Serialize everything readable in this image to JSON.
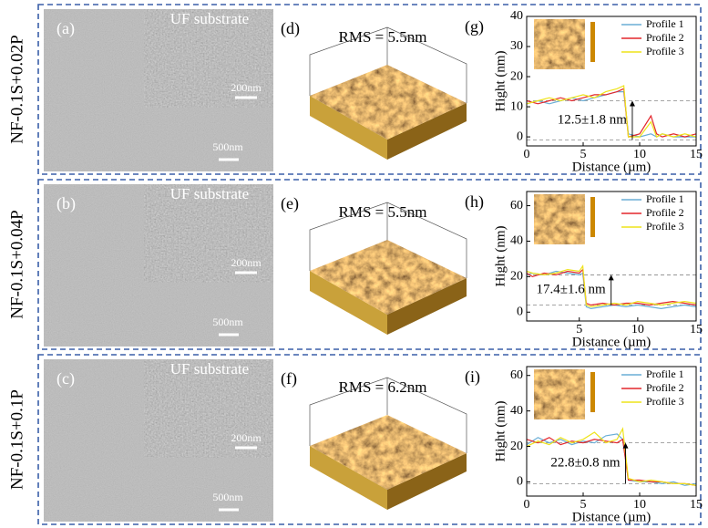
{
  "rows": [
    {
      "label": "NF-0.1S+0.02P",
      "sem": {
        "panel": "(a)",
        "inset_label": "UF substrate",
        "inset_scale": "200nm",
        "scale": "500nm"
      },
      "afm": {
        "panel": "(d)",
        "rms": "RMS = 5.5nm"
      }
    },
    {
      "label": "NF-0.1S+0.04P",
      "sem": {
        "panel": "(b)",
        "inset_label": "UF substrate",
        "inset_scale": "200nm",
        "scale": "500nm"
      },
      "afm": {
        "panel": "(e)",
        "rms": "RMS = 5.5nm"
      }
    },
    {
      "label": "NF-0.1S+0.1P",
      "sem": {
        "panel": "(c)",
        "inset_label": "UF substrate",
        "inset_scale": "200nm",
        "scale": "500nm"
      },
      "afm": {
        "panel": "(f)",
        "rms": "RMS = 6.2nm"
      }
    }
  ],
  "chart_data": [
    {
      "type": "line",
      "panel": "(g)",
      "xlabel": "Distance (µm)",
      "ylabel": "Hight (nm)",
      "annotation": "12.5±1.8 nm",
      "legend": "upper right",
      "x": [
        0,
        1,
        2,
        3,
        4,
        5,
        6,
        7,
        8,
        8.6,
        9,
        10,
        11,
        11.5,
        12,
        13,
        14,
        15
      ],
      "xlim": [
        0,
        15
      ],
      "xticks": [
        0,
        5,
        10,
        15
      ],
      "ylim": [
        -3,
        40
      ],
      "yticks": [
        0,
        10,
        20,
        30,
        40
      ],
      "reference_lines": [
        12,
        -1
      ],
      "series": [
        {
          "name": "Profile 1",
          "color": "#6aaed6",
          "values": [
            11,
            12,
            11,
            12,
            13,
            12,
            13,
            14,
            15,
            15,
            1,
            0,
            1,
            0,
            1,
            0,
            0,
            0
          ]
        },
        {
          "name": "Profile 2",
          "color": "#e3262c",
          "values": [
            12,
            11,
            12,
            13,
            12,
            13,
            14,
            14,
            15,
            16,
            0,
            1,
            7,
            1,
            0,
            1,
            0,
            1
          ]
        },
        {
          "name": "Profile 3",
          "color": "#eee31a",
          "values": [
            11,
            12,
            13,
            12,
            13,
            14,
            13,
            15,
            16,
            17,
            0,
            0,
            5,
            0,
            1,
            0,
            1,
            0
          ]
        }
      ]
    },
    {
      "type": "line",
      "panel": "(h)",
      "xlabel": "Distance (µm)",
      "ylabel": "Hight (nm)",
      "annotation": "17.4±1.6 nm",
      "legend": "upper right",
      "x": [
        0.5,
        1,
        2,
        3,
        4,
        5,
        5.3,
        5.6,
        6,
        7,
        8,
        9,
        10,
        11,
        12,
        13,
        14,
        15
      ],
      "xlim": [
        0.5,
        15
      ],
      "xticks": [
        5,
        10,
        15
      ],
      "ylim": [
        -5,
        68
      ],
      "yticks": [
        0,
        20,
        40,
        60
      ],
      "reference_lines": [
        21,
        4
      ],
      "series": [
        {
          "name": "Profile 1",
          "color": "#6aaed6",
          "values": [
            21,
            22,
            21,
            23,
            22,
            21,
            22,
            3,
            2,
            3,
            4,
            3,
            4,
            3,
            2,
            3,
            4,
            3
          ]
        },
        {
          "name": "Profile 2",
          "color": "#e3262c",
          "values": [
            22,
            20,
            22,
            21,
            23,
            22,
            24,
            5,
            4,
            5,
            4,
            5,
            5,
            4,
            5,
            6,
            5,
            4
          ]
        },
        {
          "name": "Profile 3",
          "color": "#eee31a",
          "values": [
            23,
            22,
            21,
            22,
            24,
            23,
            26,
            4,
            3,
            4,
            5,
            4,
            6,
            5,
            4,
            5,
            6,
            5
          ]
        }
      ]
    },
    {
      "type": "line",
      "panel": "(i)",
      "xlabel": "Distance (µm)",
      "ylabel": "Hight (nm)",
      "annotation": "22.8±0.8 nm",
      "legend": "upper right",
      "x": [
        0,
        1,
        2,
        3,
        4,
        5,
        6,
        7,
        8,
        8.5,
        9,
        10,
        11,
        12,
        13,
        14,
        15
      ],
      "xlim": [
        0,
        15
      ],
      "xticks": [
        0,
        5,
        10,
        15
      ],
      "ylim": [
        -8,
        65
      ],
      "yticks": [
        0,
        20,
        40,
        60
      ],
      "reference_lines": [
        22,
        -1
      ],
      "series": [
        {
          "name": "Profile 1",
          "color": "#6aaed6",
          "values": [
            21,
            25,
            22,
            24,
            21,
            23,
            22,
            26,
            27,
            24,
            1,
            0,
            0,
            -1,
            0,
            -2,
            -1
          ]
        },
        {
          "name": "Profile 2",
          "color": "#e3262c",
          "values": [
            24,
            22,
            25,
            21,
            23,
            22,
            24,
            23,
            22,
            24,
            1,
            1,
            0,
            0,
            -1,
            -1,
            -2
          ]
        },
        {
          "name": "Profile 3",
          "color": "#eee31a",
          "values": [
            20,
            23,
            21,
            25,
            22,
            24,
            28,
            22,
            24,
            30,
            2,
            0,
            1,
            0,
            -1,
            -1,
            -2
          ]
        }
      ]
    }
  ]
}
